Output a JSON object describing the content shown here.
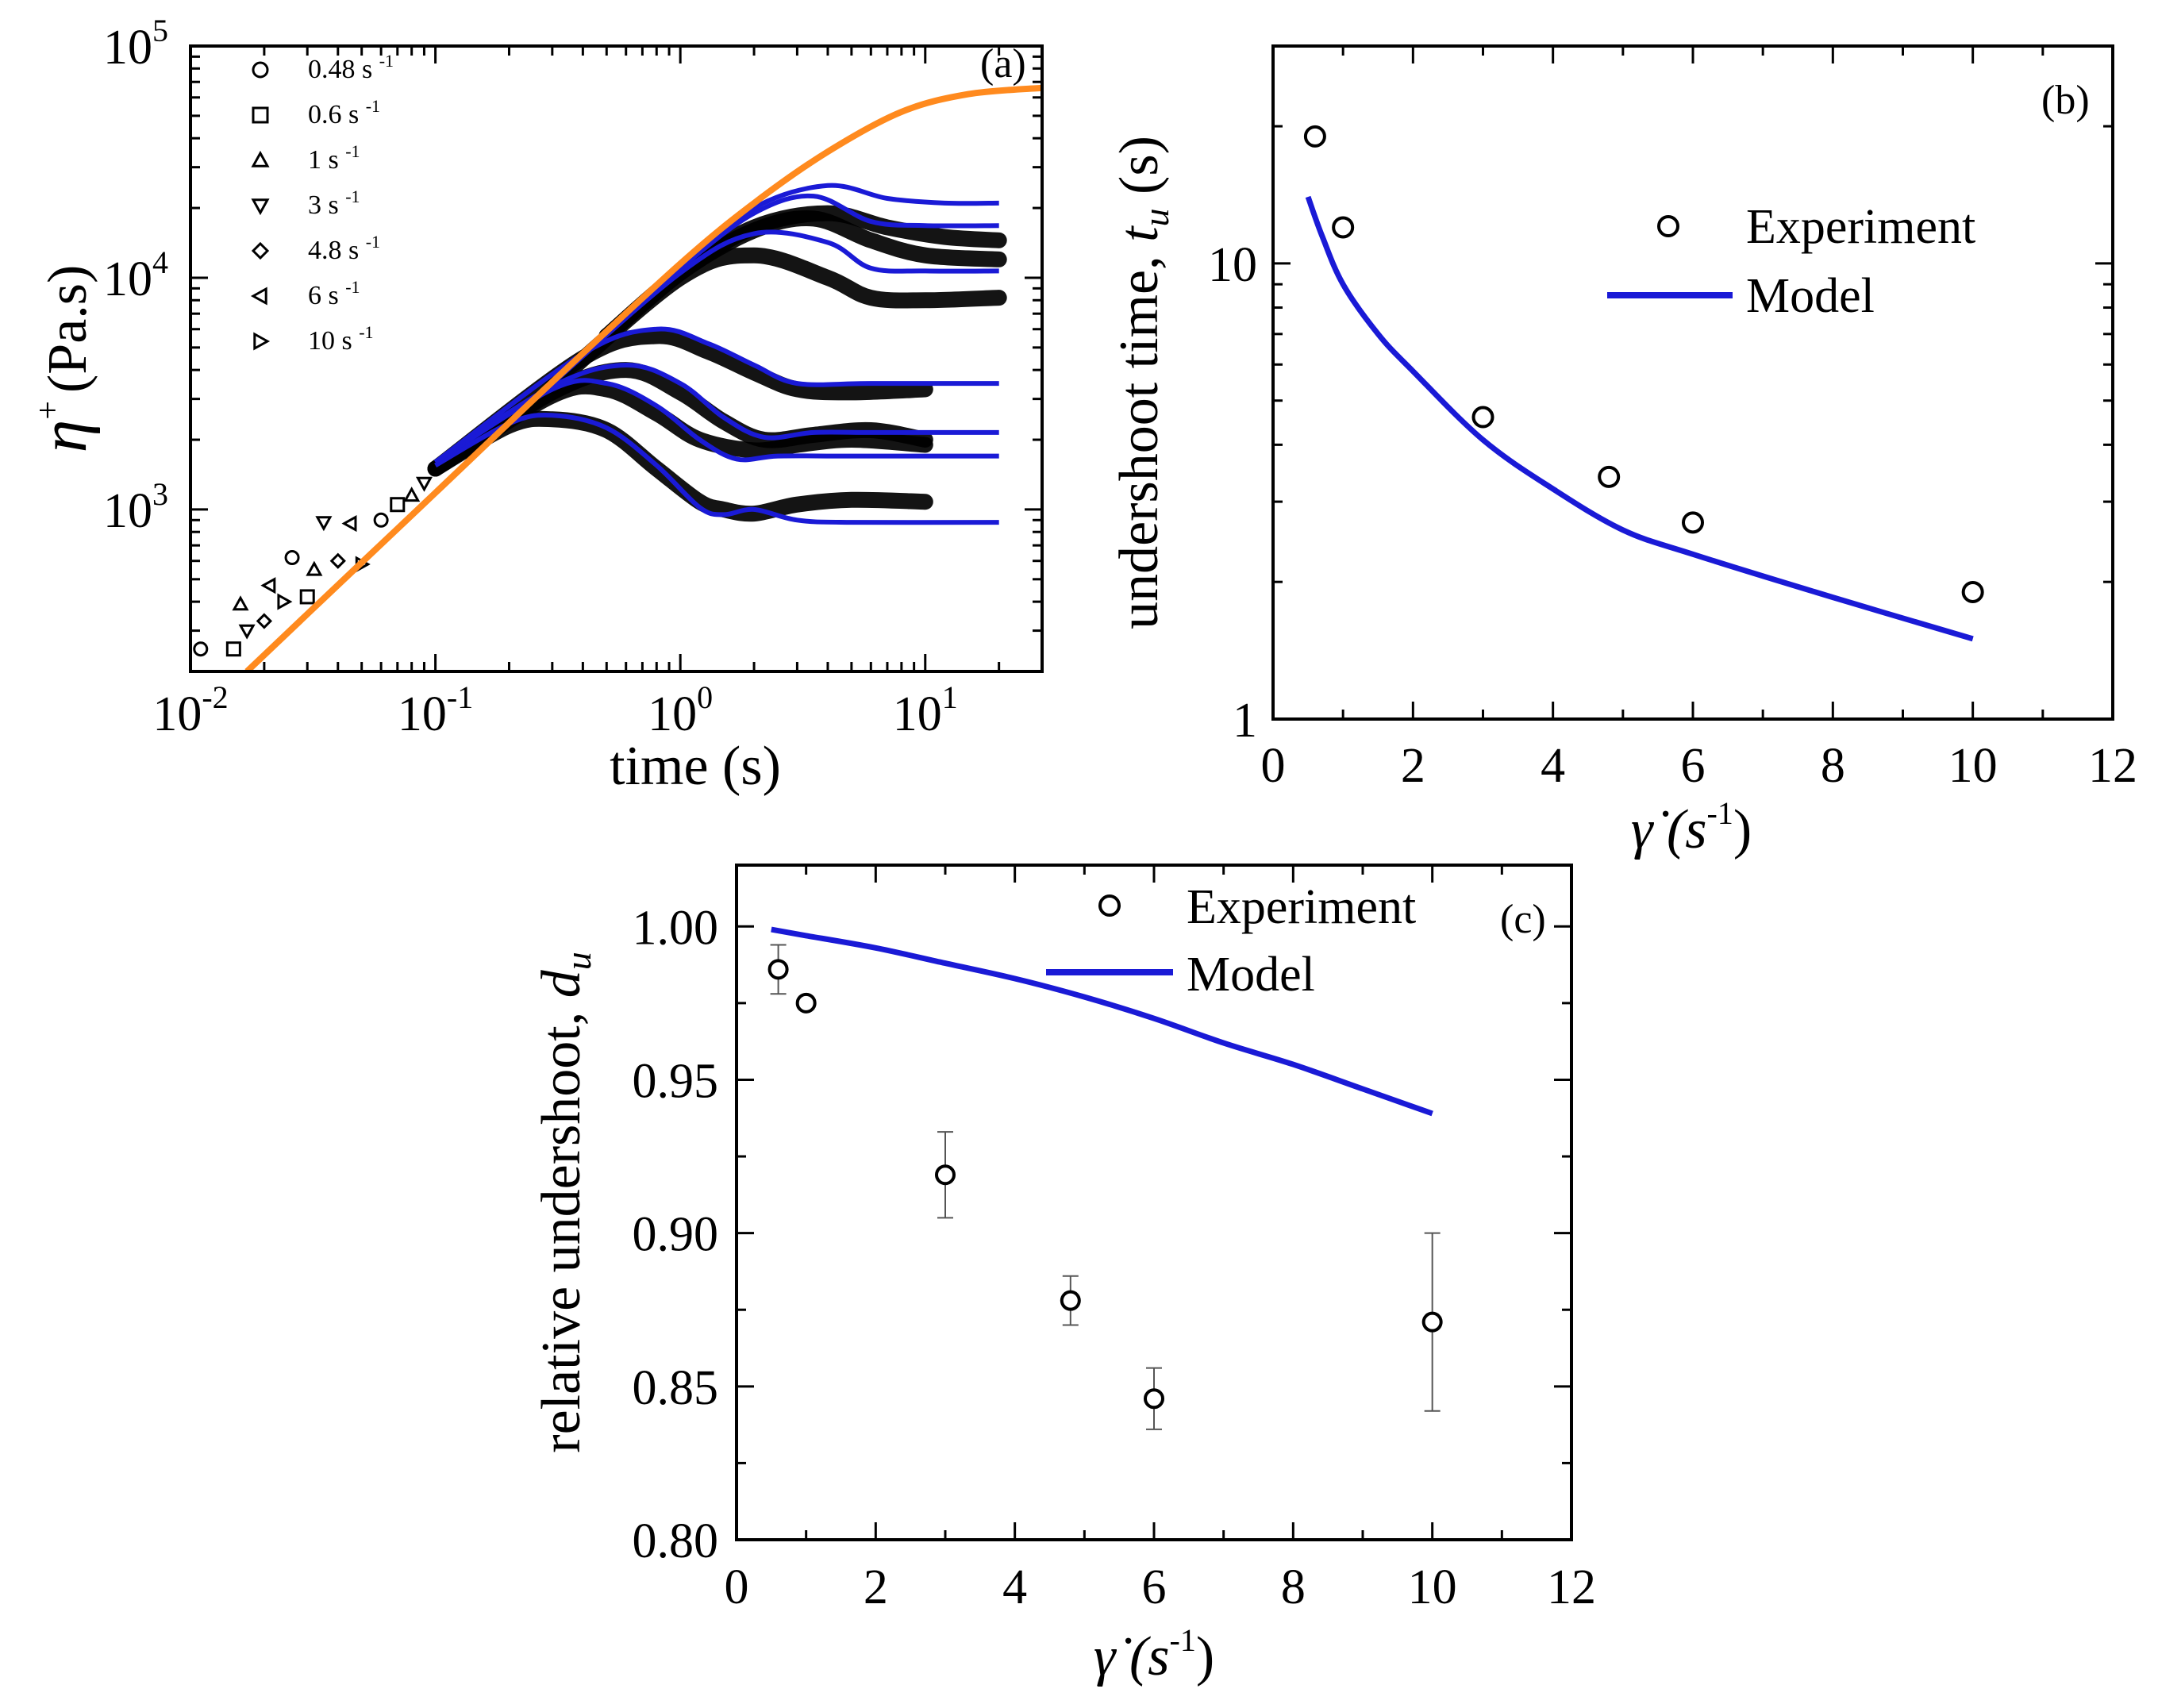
{
  "figure": {
    "colors": {
      "model": "#1a1ad6",
      "orange": "#ff8a1e",
      "experiment": "#000000",
      "errorbar": "#555555"
    }
  },
  "chart_data": [
    {
      "id": "a",
      "type": "line",
      "panel_label": "(a)",
      "title": "",
      "xlabel": "time (s)",
      "ylabel_main": "η",
      "ylabel_sup": "+",
      "ylabel_rest": "(Pa.s)",
      "xscale": "log",
      "yscale": "log",
      "xlim": [
        0.01,
        30
      ],
      "ylim": [
        200,
        100000
      ],
      "x_ticks": [
        {
          "value": 0.01,
          "base": "10",
          "exp": "-2"
        },
        {
          "value": 0.1,
          "base": "10",
          "exp": "-1"
        },
        {
          "value": 1,
          "base": "10",
          "exp": "0"
        },
        {
          "value": 10,
          "base": "10",
          "exp": "1"
        }
      ],
      "y_ticks": [
        {
          "value": 1000,
          "base": "10",
          "exp": "3"
        },
        {
          "value": 10000,
          "base": "10",
          "exp": "4"
        },
        {
          "value": 100000,
          "base": "10",
          "exp": "5"
        }
      ],
      "legend": [
        {
          "marker": "circle",
          "label": "0.48 s",
          "sup": "-1"
        },
        {
          "marker": "square",
          "label": "0.6 s",
          "sup": "-1"
        },
        {
          "marker": "triangle-up",
          "label": "1 s",
          "sup": "-1"
        },
        {
          "marker": "triangle-down",
          "label": "3 s",
          "sup": "-1"
        },
        {
          "marker": "diamond",
          "label": "4.8 s",
          "sup": "-1"
        },
        {
          "marker": "triangle-left",
          "label": "6 s",
          "sup": "-1"
        },
        {
          "marker": "triangle-right",
          "label": "10 s",
          "sup": "-1"
        }
      ],
      "linear_envelope": {
        "name": "orange curve",
        "points": [
          [
            0.017,
            200
          ],
          [
            0.05,
            590
          ],
          [
            0.1,
            1180
          ],
          [
            0.3,
            3550
          ],
          [
            1,
            11500
          ],
          [
            2,
            21000
          ],
          [
            4,
            35000
          ],
          [
            8,
            52000
          ],
          [
            15,
            62000
          ],
          [
            30,
            66000
          ]
        ]
      },
      "model_series": [
        {
          "rate": 10,
          "points": [
            [
              0.1,
              1550
            ],
            [
              0.2,
              2350
            ],
            [
              0.3,
              2550
            ],
            [
              0.5,
              2250
            ],
            [
              0.8,
              1550
            ],
            [
              1.2,
              1020
            ],
            [
              1.5,
              950
            ],
            [
              2,
              1000
            ],
            [
              3,
              900
            ],
            [
              5,
              880
            ],
            [
              20,
              880
            ]
          ]
        },
        {
          "rate": 6,
          "points": [
            [
              0.1,
              1600
            ],
            [
              0.3,
              3300
            ],
            [
              0.5,
              3500
            ],
            [
              0.8,
              2800
            ],
            [
              1.2,
              2000
            ],
            [
              1.7,
              1650
            ],
            [
              2.5,
              1700
            ],
            [
              5,
              1700
            ],
            [
              20,
              1700
            ]
          ]
        },
        {
          "rate": 4.8,
          "points": [
            [
              0.1,
              1600
            ],
            [
              0.3,
              3400
            ],
            [
              0.6,
              4200
            ],
            [
              1,
              3500
            ],
            [
              1.5,
              2500
            ],
            [
              2.2,
              2050
            ],
            [
              3.5,
              2150
            ],
            [
              6,
              2150
            ],
            [
              20,
              2150
            ]
          ]
        },
        {
          "rate": 3,
          "points": [
            [
              0.1,
              1600
            ],
            [
              0.4,
              4700
            ],
            [
              0.8,
              6000
            ],
            [
              1.3,
              5200
            ],
            [
              2,
              4200
            ],
            [
              3,
              3500
            ],
            [
              6,
              3500
            ],
            [
              20,
              3500
            ]
          ]
        },
        {
          "rate": 1,
          "points": [
            [
              0.3,
              3500
            ],
            [
              1,
              10500
            ],
            [
              2,
              15500
            ],
            [
              4,
              14200
            ],
            [
              6,
              11000
            ],
            [
              10,
              10700
            ],
            [
              20,
              10700
            ]
          ]
        },
        {
          "rate": 0.6,
          "points": [
            [
              0.5,
              5800
            ],
            [
              1,
              11000
            ],
            [
              2,
              19000
            ],
            [
              3.5,
              22500
            ],
            [
              6,
              17500
            ],
            [
              10,
              16800
            ],
            [
              20,
              16800
            ]
          ]
        },
        {
          "rate": 0.48,
          "points": [
            [
              0.5,
              5800
            ],
            [
              1,
              11000
            ],
            [
              2,
              20000
            ],
            [
              4,
              25000
            ],
            [
              7,
              22000
            ],
            [
              12,
              21000
            ],
            [
              20,
              21000
            ]
          ]
        }
      ],
      "experiment_series": [
        {
          "rate": 10,
          "points": [
            [
              0.1,
              1500
            ],
            [
              0.2,
              2300
            ],
            [
              0.3,
              2450
            ],
            [
              0.5,
              2200
            ],
            [
              0.8,
              1500
            ],
            [
              1.2,
              1080
            ],
            [
              1.5,
              1000
            ],
            [
              2,
              960
            ],
            [
              3,
              1050
            ],
            [
              5,
              1100
            ],
            [
              10,
              1080
            ]
          ]
        },
        {
          "rate": 6,
          "points": [
            [
              0.1,
              1500
            ],
            [
              0.3,
              3100
            ],
            [
              0.5,
              3300
            ],
            [
              0.8,
              2600
            ],
            [
              1.2,
              2000
            ],
            [
              2,
              1800
            ],
            [
              3,
              1900
            ],
            [
              5,
              2000
            ],
            [
              10,
              1900
            ]
          ]
        },
        {
          "rate": 4.8,
          "points": [
            [
              0.1,
              1500
            ],
            [
              0.3,
              3200
            ],
            [
              0.6,
              4000
            ],
            [
              1,
              3200
            ],
            [
              1.5,
              2400
            ],
            [
              2.2,
              2000
            ],
            [
              3.5,
              2100
            ],
            [
              6,
              2200
            ],
            [
              10,
              2000
            ]
          ]
        },
        {
          "rate": 3,
          "points": [
            [
              0.1,
              1500
            ],
            [
              0.4,
              4500
            ],
            [
              0.8,
              5600
            ],
            [
              1.3,
              4800
            ],
            [
              2,
              3900
            ],
            [
              3,
              3300
            ],
            [
              5,
              3200
            ],
            [
              10,
              3300
            ]
          ]
        },
        {
          "rate": 1,
          "points": [
            [
              0.3,
              3400
            ],
            [
              1,
              10000
            ],
            [
              2,
              12500
            ],
            [
              4,
              10000
            ],
            [
              6,
              8200
            ],
            [
              10,
              8000
            ],
            [
              20,
              8200
            ]
          ]
        },
        {
          "rate": 0.6,
          "points": [
            [
              0.5,
              5600
            ],
            [
              1,
              10500
            ],
            [
              2,
              16000
            ],
            [
              3.5,
              18000
            ],
            [
              6,
              14500
            ],
            [
              10,
              12500
            ],
            [
              20,
              12000
            ]
          ]
        },
        {
          "rate": 0.48,
          "points": [
            [
              0.5,
              5600
            ],
            [
              1,
              10500
            ],
            [
              2,
              16500
            ],
            [
              4,
              19000
            ],
            [
              7,
              16500
            ],
            [
              12,
              15000
            ],
            [
              20,
              14500
            ]
          ]
        }
      ],
      "early_scatter": [
        [
          0.011,
          250
        ],
        [
          0.015,
          250
        ],
        [
          0.016,
          390
        ],
        [
          0.017,
          300
        ],
        [
          0.02,
          330
        ],
        [
          0.021,
          470
        ],
        [
          0.024,
          400
        ],
        [
          0.026,
          620
        ],
        [
          0.03,
          420
        ],
        [
          0.032,
          550
        ],
        [
          0.035,
          880
        ],
        [
          0.04,
          600
        ],
        [
          0.045,
          870
        ],
        [
          0.05,
          580
        ],
        [
          0.06,
          900
        ],
        [
          0.07,
          1050
        ],
        [
          0.08,
          1150
        ],
        [
          0.09,
          1300
        ]
      ]
    },
    {
      "id": "b",
      "type": "scatter",
      "panel_label": "(b)",
      "title": "",
      "xlabel": "γ̇ (s",
      "xlabel_sup": "-1",
      "xlabel_close": ")",
      "ylabel_main": "undershoot time, ",
      "ylabel_var": "t",
      "ylabel_sub": "u",
      "ylabel_close": " (s)",
      "xscale": "linear",
      "yscale": "log",
      "xlim": [
        0,
        12
      ],
      "ylim": [
        1,
        30
      ],
      "x_ticks": [
        "0",
        "2",
        "4",
        "6",
        "8",
        "10",
        "12"
      ],
      "y_ticks": [
        {
          "value": 1,
          "label": "1"
        },
        {
          "value": 10,
          "label": "10"
        }
      ],
      "legend": [
        {
          "kind": "marker",
          "label": "Experiment"
        },
        {
          "kind": "line",
          "label": "Model"
        }
      ],
      "experiment": {
        "x": [
          0.6,
          1,
          3,
          4.8,
          6,
          10
        ],
        "y": [
          19,
          12,
          4.6,
          3.4,
          2.7,
          1.9
        ]
      },
      "model": {
        "x": [
          0.5,
          0.7,
          1,
          1.5,
          2,
          3,
          4,
          5,
          6,
          8,
          10
        ],
        "y": [
          14,
          11.5,
          9,
          7,
          5.8,
          4.1,
          3.2,
          2.6,
          2.3,
          1.85,
          1.5
        ]
      }
    },
    {
      "id": "c",
      "type": "scatter",
      "panel_label": "(c)",
      "title": "",
      "xlabel": "γ̇ (s",
      "xlabel_sup": "-1",
      "xlabel_close": ")",
      "ylabel_main": "relative undershoot, ",
      "ylabel_var": "d",
      "ylabel_sub": "u",
      "xscale": "linear",
      "yscale": "linear",
      "xlim": [
        0,
        12
      ],
      "ylim": [
        0.8,
        1.02
      ],
      "x_ticks": [
        "0",
        "2",
        "4",
        "6",
        "8",
        "10",
        "12"
      ],
      "y_ticks": [
        "0.80",
        "0.85",
        "0.90",
        "0.95",
        "1.00"
      ],
      "legend": [
        {
          "kind": "marker",
          "label": "Experiment"
        },
        {
          "kind": "line",
          "label": "Model"
        }
      ],
      "experiment": {
        "x": [
          0.6,
          1,
          3,
          4.8,
          6,
          10
        ],
        "y": [
          0.986,
          0.975,
          0.919,
          0.878,
          0.846,
          0.871
        ],
        "err": [
          0.008,
          0,
          0.014,
          0.008,
          0.01,
          0.029
        ]
      },
      "model": {
        "x": [
          0.5,
          1,
          2,
          3,
          4,
          5,
          6,
          7,
          8,
          9,
          10
        ],
        "y": [
          0.999,
          0.997,
          0.993,
          0.988,
          0.983,
          0.977,
          0.97,
          0.962,
          0.955,
          0.947,
          0.939
        ]
      }
    }
  ]
}
